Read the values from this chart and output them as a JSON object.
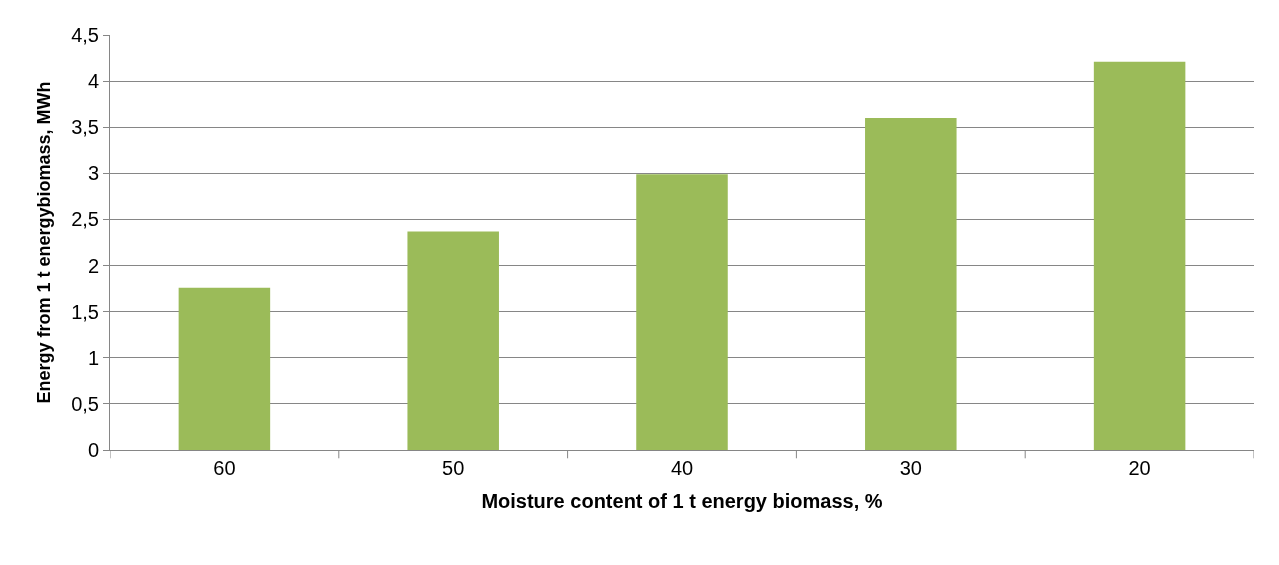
{
  "chart_data": {
    "type": "bar",
    "xlabel": "Moisture content of 1 t energy biomass, %",
    "ylabel": "Energy from 1 t energybiomass, MWh",
    "categories": [
      "60",
      "50",
      "40",
      "30",
      "20"
    ],
    "values": [
      1.76,
      2.37,
      2.99,
      3.6,
      4.21
    ],
    "color": "#9bbb59",
    "ylim": [
      0,
      4.5
    ],
    "yticks": [
      0,
      {
        "value": 0.5,
        "label": "0,5"
      },
      1,
      {
        "value": 1.5,
        "label": "1,5"
      },
      2,
      {
        "value": 2.5,
        "label": "2,5"
      },
      3,
      {
        "value": 3.5,
        "label": "3,5"
      },
      4,
      {
        "value": 4.5,
        "label": "4,5"
      }
    ],
    "grid": "y"
  }
}
